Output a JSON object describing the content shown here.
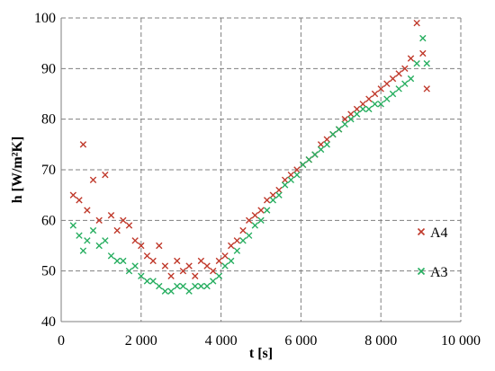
{
  "chart_data": {
    "type": "scatter",
    "title": "",
    "xlabel": "t [s]",
    "ylabel": "h [W/m²K]",
    "xlim": [
      0,
      10000
    ],
    "ylim": [
      40,
      100
    ],
    "x_ticks": [
      0,
      2000,
      4000,
      6000,
      8000,
      10000
    ],
    "x_tick_labels": [
      "0",
      "2 000",
      "4 000",
      "6 000",
      "8 000",
      "10 000"
    ],
    "y_ticks": [
      40,
      50,
      60,
      70,
      80,
      90,
      100
    ],
    "y_tick_labels": [
      "40",
      "50",
      "60",
      "70",
      "80",
      "90",
      "100"
    ],
    "grid": true,
    "legend": "right",
    "series": [
      {
        "name": "A4",
        "color": "#c0392b",
        "marker": "x",
        "x": [
          300,
          450,
          550,
          650,
          800,
          950,
          1100,
          1250,
          1400,
          1550,
          1700,
          1850,
          2000,
          2150,
          2300,
          2450,
          2600,
          2750,
          2900,
          3050,
          3200,
          3350,
          3500,
          3650,
          3800,
          3950,
          4100,
          4250,
          4400,
          4550,
          4700,
          4850,
          5000,
          5150,
          5300,
          5450,
          5600,
          5750,
          5900,
          6050,
          6200,
          6350,
          6500,
          6650,
          6800,
          6950,
          7100,
          7250,
          7400,
          7550,
          7700,
          7850,
          8000,
          8150,
          8300,
          8450,
          8600,
          8750,
          8900,
          9050,
          9150
        ],
        "y": [
          65,
          64,
          75,
          62,
          68,
          60,
          69,
          61,
          58,
          60,
          59,
          56,
          55,
          53,
          52,
          55,
          51,
          49,
          52,
          50,
          51,
          49,
          52,
          51,
          50,
          52,
          53,
          55,
          56,
          58,
          60,
          61,
          62,
          64,
          65,
          66,
          68,
          69,
          70,
          71,
          72,
          73,
          75,
          76,
          77,
          78,
          80,
          81,
          82,
          83,
          84,
          85,
          86,
          87,
          88,
          89,
          90,
          92,
          99,
          93,
          86
        ]
      },
      {
        "name": "A3",
        "color": "#27ae60",
        "marker": "x",
        "x": [
          300,
          450,
          550,
          650,
          800,
          950,
          1100,
          1250,
          1400,
          1550,
          1700,
          1850,
          2000,
          2150,
          2300,
          2450,
          2600,
          2750,
          2900,
          3050,
          3200,
          3350,
          3500,
          3650,
          3800,
          3950,
          4100,
          4250,
          4400,
          4550,
          4700,
          4850,
          5000,
          5150,
          5300,
          5450,
          5600,
          5750,
          5900,
          6050,
          6200,
          6350,
          6500,
          6650,
          6800,
          6950,
          7100,
          7250,
          7400,
          7550,
          7700,
          7850,
          8000,
          8150,
          8300,
          8450,
          8600,
          8750,
          8900,
          9050,
          9150
        ],
        "y": [
          59,
          57,
          54,
          56,
          58,
          55,
          56,
          53,
          52,
          52,
          50,
          51,
          49,
          48,
          48,
          47,
          46,
          46,
          47,
          47,
          46,
          47,
          47,
          47,
          48,
          49,
          51,
          52,
          54,
          56,
          57,
          59,
          60,
          62,
          64,
          65,
          67,
          68,
          69,
          71,
          72,
          73,
          74,
          75,
          77,
          78,
          79,
          80,
          81,
          82,
          82,
          83,
          83,
          84,
          85,
          86,
          87,
          88,
          91,
          96,
          91
        ]
      }
    ]
  }
}
